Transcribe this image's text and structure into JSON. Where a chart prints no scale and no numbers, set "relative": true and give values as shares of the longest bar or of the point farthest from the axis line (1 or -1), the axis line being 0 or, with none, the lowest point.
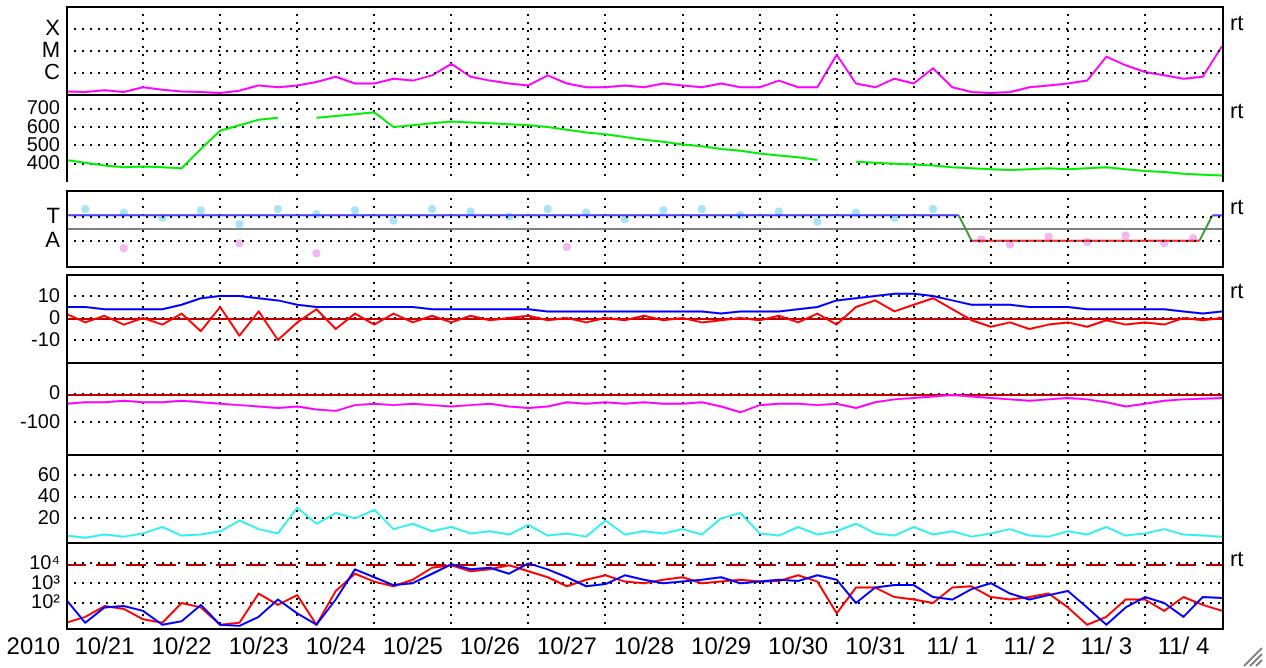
{
  "chart_data": [
    {
      "type": "line",
      "relative": true,
      "grid": true,
      "tick_labels": "y",
      "annotations": [
        "rt",
        "C",
        "M",
        "X"
      ],
      "xlim": [
        "2010-10-21T00:00",
        "2010-11-05T00:00"
      ],
      "xticks": [
        {
          "value": "2010-10-22T00:00",
          "label": null
        },
        {
          "value": "2010-10-23T00:00",
          "label": null
        },
        {
          "value": "2010-10-24T00:00",
          "label": null
        },
        {
          "value": "2010-10-25T00:00",
          "label": null
        },
        {
          "value": "2010-10-26T00:00",
          "label": null
        },
        {
          "value": "2010-10-27T00:00",
          "label": null
        },
        {
          "value": "2010-10-28T00:00",
          "label": null
        },
        {
          "value": "2010-10-29T00:00",
          "label": null
        },
        {
          "value": "2010-10-30T00:00",
          "label": null
        },
        {
          "value": "2010-10-31T00:00",
          "label": null
        },
        {
          "value": "2010-11-01T00:00",
          "label": null
        },
        {
          "value": "2010-11-02T00:00",
          "label": null
        },
        {
          "value": "2010-11-03T00:00",
          "label": null
        },
        {
          "value": "2010-11-04T00:00",
          "label": null
        }
      ],
      "x": [
        "2010-10-21T00:00",
        "2010-10-21T06:00",
        "2010-10-21T12:00",
        "2010-10-21T18:00",
        "2010-10-22T00:00",
        "2010-10-22T06:00",
        "2010-10-22T12:00",
        "2010-10-22T18:00",
        "2010-10-23T00:00",
        "2010-10-23T06:00",
        "2010-10-23T12:00",
        "2010-10-23T18:00",
        "2010-10-24T00:00",
        "2010-10-24T06:00",
        "2010-10-24T12:00",
        "2010-10-24T18:00",
        "2010-10-25T00:00",
        "2010-10-25T06:00",
        "2010-10-25T12:00",
        "2010-10-25T18:00",
        "2010-10-26T00:00",
        "2010-10-26T06:00",
        "2010-10-26T12:00",
        "2010-10-26T18:00",
        "2010-10-27T00:00",
        "2010-10-27T06:00",
        "2010-10-27T12:00",
        "2010-10-27T18:00",
        "2010-10-28T00:00",
        "2010-10-28T06:00",
        "2010-10-28T12:00",
        "2010-10-28T18:00",
        "2010-10-29T00:00",
        "2010-10-29T06:00",
        "2010-10-29T12:00",
        "2010-10-29T18:00",
        "2010-10-30T00:00",
        "2010-10-30T06:00",
        "2010-10-30T12:00",
        "2010-10-30T18:00",
        "2010-10-31T00:00",
        "2010-10-31T06:00",
        "2010-10-31T12:00",
        "2010-10-31T18:00",
        "2010-11-01T00:00",
        "2010-11-01T06:00",
        "2010-11-01T12:00",
        "2010-11-01T18:00",
        "2010-11-02T00:00",
        "2010-11-02T06:00",
        "2010-11-02T12:00",
        "2010-11-02T18:00",
        "2010-11-03T00:00",
        "2010-11-03T06:00",
        "2010-11-03T12:00",
        "2010-11-03T18:00",
        "2010-11-04T00:00",
        "2010-11-04T06:00",
        "2010-11-04T12:00",
        "2010-11-04T18:00",
        "2010-11-05T00:00"
      ],
      "series": [
        {
          "color": "#ff00ff",
          "values": [
            0.05,
            0.04,
            0.08,
            0.04,
            0.14,
            0.09,
            0.05,
            0.04,
            0.02,
            0.07,
            0.18,
            0.14,
            0.18,
            0.25,
            0.36,
            0.22,
            0.22,
            0.32,
            0.28,
            0.39,
            0.63,
            0.36,
            0.28,
            0.22,
            0.18,
            0.39,
            0.22,
            0.14,
            0.14,
            0.18,
            0.14,
            0.22,
            0.18,
            0.14,
            0.22,
            0.14,
            0.14,
            0.28,
            0.14,
            0.14,
            0.82,
            0.22,
            0.14,
            0.32,
            0.22,
            0.54,
            0.14,
            0.04,
            0.02,
            0.04,
            0.14,
            0.18,
            0.22,
            0.28,
            0.78,
            0.6,
            0.46,
            0.39,
            0.32,
            0.36,
            1
          ]
        }
      ]
    },
    {
      "type": "line",
      "grid": true,
      "tick_labels": "y",
      "annotations": [
        "rt"
      ],
      "xlim": [
        "2010-10-21T00:00",
        "2010-11-05T00:00"
      ],
      "xticks": [
        {
          "value": "2010-10-22T00:00",
          "label": null
        },
        {
          "value": "2010-10-23T00:00",
          "label": null
        },
        {
          "value": "2010-10-24T00:00",
          "label": null
        },
        {
          "value": "2010-10-25T00:00",
          "label": null
        },
        {
          "value": "2010-10-26T00:00",
          "label": null
        },
        {
          "value": "2010-10-27T00:00",
          "label": null
        },
        {
          "value": "2010-10-28T00:00",
          "label": null
        },
        {
          "value": "2010-10-29T00:00",
          "label": null
        },
        {
          "value": "2010-10-30T00:00",
          "label": null
        },
        {
          "value": "2010-10-31T00:00",
          "label": null
        },
        {
          "value": "2010-11-01T00:00",
          "label": null
        },
        {
          "value": "2010-11-02T00:00",
          "label": null
        },
        {
          "value": "2010-11-03T00:00",
          "label": null
        },
        {
          "value": "2010-11-04T00:00",
          "label": null
        }
      ],
      "ylim": [
        300,
        780
      ],
      "yticks": [
        400,
        500,
        600,
        700
      ],
      "x": [
        "2010-10-21T00:00",
        "2010-10-21T06:00",
        "2010-10-21T12:00",
        "2010-10-21T18:00",
        "2010-10-22T00:00",
        "2010-10-22T06:00",
        "2010-10-22T12:00",
        "2010-10-22T18:00",
        "2010-10-23T00:00",
        "2010-10-23T06:00",
        "2010-10-23T12:00",
        "2010-10-23T18:00",
        "2010-10-24T00:00",
        "2010-10-24T06:00",
        "2010-10-24T12:00",
        "2010-10-24T18:00",
        "2010-10-25T00:00",
        "2010-10-25T06:00",
        "2010-10-25T12:00",
        "2010-10-25T18:00",
        "2010-10-26T00:00",
        "2010-10-26T06:00",
        "2010-10-26T12:00",
        "2010-10-26T18:00",
        "2010-10-27T00:00",
        "2010-10-27T06:00",
        "2010-10-27T12:00",
        "2010-10-27T18:00",
        "2010-10-28T00:00",
        "2010-10-28T06:00",
        "2010-10-28T12:00",
        "2010-10-28T18:00",
        "2010-10-29T00:00",
        "2010-10-29T06:00",
        "2010-10-29T12:00",
        "2010-10-29T18:00",
        "2010-10-30T00:00",
        "2010-10-30T06:00",
        "2010-10-30T12:00",
        "2010-10-30T18:00",
        "2010-10-31T00:00",
        "2010-10-31T06:00",
        "2010-10-31T12:00",
        "2010-10-31T18:00",
        "2010-11-01T00:00",
        "2010-11-01T06:00",
        "2010-11-01T12:00",
        "2010-11-01T18:00",
        "2010-11-02T00:00",
        "2010-11-02T06:00",
        "2010-11-02T12:00",
        "2010-11-02T18:00",
        "2010-11-03T00:00",
        "2010-11-03T06:00",
        "2010-11-03T12:00",
        "2010-11-03T18:00",
        "2010-11-04T00:00",
        "2010-11-04T06:00",
        "2010-11-04T12:00",
        "2010-11-04T18:00",
        "2010-11-05T00:00"
      ],
      "series": [
        {
          "color": "#00ee00",
          "values": [
            420,
            405,
            390,
            380,
            385,
            380,
            375,
            480,
            580,
            610,
            640,
            650,
            null,
            650,
            660,
            670,
            680,
            600,
            610,
            620,
            630,
            625,
            620,
            615,
            610,
            600,
            585,
            570,
            560,
            545,
            530,
            520,
            505,
            495,
            480,
            470,
            455,
            445,
            435,
            420,
            null,
            410,
            405,
            400,
            395,
            390,
            380,
            375,
            370,
            365,
            370,
            375,
            370,
            375,
            380,
            370,
            360,
            355,
            345,
            340,
            335
          ]
        }
      ]
    },
    {
      "type": "line",
      "relative": true,
      "grid": true,
      "tick_labels": "y",
      "annotations": [
        "rt",
        "A",
        "T"
      ],
      "xlim": [
        "2010-10-21T00:00",
        "2010-11-05T00:00"
      ],
      "xticks": [
        {
          "value": "2010-10-22T00:00",
          "label": null
        },
        {
          "value": "2010-10-23T00:00",
          "label": null
        },
        {
          "value": "2010-10-24T00:00",
          "label": null
        },
        {
          "value": "2010-10-25T00:00",
          "label": null
        },
        {
          "value": "2010-10-26T00:00",
          "label": null
        },
        {
          "value": "2010-10-27T00:00",
          "label": null
        },
        {
          "value": "2010-10-28T00:00",
          "label": null
        },
        {
          "value": "2010-10-29T00:00",
          "label": null
        },
        {
          "value": "2010-10-30T00:00",
          "label": null
        },
        {
          "value": "2010-10-31T00:00",
          "label": null
        },
        {
          "value": "2010-11-01T00:00",
          "label": null
        },
        {
          "value": "2010-11-02T00:00",
          "label": null
        },
        {
          "value": "2010-11-03T00:00",
          "label": null
        },
        {
          "value": "2010-11-04T00:00",
          "label": null
        }
      ],
      "ref_lines": [
        {
          "axis": "y",
          "value": 0,
          "color": "#808080"
        }
      ],
      "series": [
        {
          "color": "#4040ff",
          "x": [
            "2010-10-21T00:00",
            "2010-11-01T14:00"
          ],
          "values": [
            0.5,
            0.5
          ]
        },
        {
          "color": "#339933",
          "x": [
            "2010-11-01T14:00",
            "2010-11-01T18:00"
          ],
          "values": [
            0.5,
            -0.5
          ]
        },
        {
          "color": "#ff2020",
          "x": [
            "2010-11-01T18:00",
            "2010-11-04T17:00"
          ],
          "values": [
            -0.5,
            -0.5
          ]
        },
        {
          "color": "#339933",
          "x": [
            "2010-11-04T17:00",
            "2010-11-04T21:00"
          ],
          "values": [
            -0.5,
            0.5
          ]
        },
        {
          "color": "#4040ff",
          "x": [
            "2010-11-04T21:00",
            "2010-11-05T00:00"
          ],
          "values": [
            0.5,
            0.5
          ]
        },
        {
          "type": "scatter",
          "color": "#a8e4f8",
          "x": [
            "2010-10-21T06:00",
            "2010-10-21T18:00",
            "2010-10-22T06:00",
            "2010-10-22T18:00",
            "2010-10-23T06:00",
            "2010-10-23T18:00",
            "2010-10-24T06:00",
            "2010-10-24T18:00",
            "2010-10-25T06:00",
            "2010-10-25T18:00",
            "2010-10-26T06:00",
            "2010-10-26T18:00",
            "2010-10-27T06:00",
            "2010-10-27T18:00",
            "2010-10-28T06:00",
            "2010-10-28T18:00",
            "2010-10-29T06:00",
            "2010-10-29T18:00",
            "2010-10-30T06:00",
            "2010-10-30T18:00",
            "2010-10-31T06:00",
            "2010-10-31T18:00",
            "2010-11-01T06:00"
          ],
          "values": [
            0.75,
            0.6,
            0.4,
            0.7,
            0.15,
            0.75,
            0.55,
            0.7,
            0.3,
            0.75,
            0.65,
            0.45,
            0.75,
            0.6,
            0.35,
            0.7,
            0.75,
            0.5,
            0.65,
            0.25,
            0.6,
            0.4,
            0.75
          ]
        },
        {
          "type": "scatter",
          "color": "#f4b8f0",
          "x": [
            "2010-10-21T18:00",
            "2010-10-23T06:00",
            "2010-10-24T06:00",
            "2010-10-27T12:00",
            "2010-11-01T21:00",
            "2010-11-02T06:00",
            "2010-11-02T18:00",
            "2010-11-03T06:00",
            "2010-11-03T18:00",
            "2010-11-04T06:00",
            "2010-11-04T15:00"
          ],
          "values": [
            -0.8,
            -0.6,
            -1,
            -0.75,
            -0.45,
            -0.65,
            -0.35,
            -0.55,
            -0.3,
            -0.6,
            -0.4
          ]
        }
      ]
    },
    {
      "type": "line",
      "grid": true,
      "tick_labels": "y",
      "annotations": [
        "rt"
      ],
      "xlim": [
        "2010-10-21T00:00",
        "2010-11-05T00:00"
      ],
      "xticks": [
        {
          "value": "2010-10-22T00:00",
          "label": null
        },
        {
          "value": "2010-10-23T00:00",
          "label": null
        },
        {
          "value": "2010-10-24T00:00",
          "label": null
        },
        {
          "value": "2010-10-25T00:00",
          "label": null
        },
        {
          "value": "2010-10-26T00:00",
          "label": null
        },
        {
          "value": "2010-10-27T00:00",
          "label": null
        },
        {
          "value": "2010-10-28T00:00",
          "label": null
        },
        {
          "value": "2010-10-29T00:00",
          "label": null
        },
        {
          "value": "2010-10-30T00:00",
          "label": null
        },
        {
          "value": "2010-10-31T00:00",
          "label": null
        },
        {
          "value": "2010-11-01T00:00",
          "label": null
        },
        {
          "value": "2010-11-02T00:00",
          "label": null
        },
        {
          "value": "2010-11-03T00:00",
          "label": null
        },
        {
          "value": "2010-11-04T00:00",
          "label": null
        }
      ],
      "ylim": [
        -20,
        20
      ],
      "yticks": [
        -10,
        0,
        10
      ],
      "ref_lines": [
        {
          "axis": "y",
          "value": 0,
          "color": "#c00000"
        }
      ],
      "x": [
        "2010-10-21T00:00",
        "2010-10-21T06:00",
        "2010-10-21T12:00",
        "2010-10-21T18:00",
        "2010-10-22T00:00",
        "2010-10-22T06:00",
        "2010-10-22T12:00",
        "2010-10-22T18:00",
        "2010-10-23T00:00",
        "2010-10-23T06:00",
        "2010-10-23T12:00",
        "2010-10-23T18:00",
        "2010-10-24T00:00",
        "2010-10-24T06:00",
        "2010-10-24T12:00",
        "2010-10-24T18:00",
        "2010-10-25T00:00",
        "2010-10-25T06:00",
        "2010-10-25T12:00",
        "2010-10-25T18:00",
        "2010-10-26T00:00",
        "2010-10-26T06:00",
        "2010-10-26T12:00",
        "2010-10-26T18:00",
        "2010-10-27T00:00",
        "2010-10-27T06:00",
        "2010-10-27T12:00",
        "2010-10-27T18:00",
        "2010-10-28T00:00",
        "2010-10-28T06:00",
        "2010-10-28T12:00",
        "2010-10-28T18:00",
        "2010-10-29T00:00",
        "2010-10-29T06:00",
        "2010-10-29T12:00",
        "2010-10-29T18:00",
        "2010-10-30T00:00",
        "2010-10-30T06:00",
        "2010-10-30T12:00",
        "2010-10-30T18:00",
        "2010-10-31T00:00",
        "2010-10-31T06:00",
        "2010-10-31T12:00",
        "2010-10-31T18:00",
        "2010-11-01T00:00",
        "2010-11-01T06:00",
        "2010-11-01T12:00",
        "2010-11-01T18:00",
        "2010-11-02T00:00",
        "2010-11-02T06:00",
        "2010-11-02T12:00",
        "2010-11-02T18:00",
        "2010-11-03T00:00",
        "2010-11-03T06:00",
        "2010-11-03T12:00",
        "2010-11-03T18:00",
        "2010-11-04T00:00",
        "2010-11-04T06:00",
        "2010-11-04T12:00",
        "2010-11-04T18:00",
        "2010-11-05T00:00"
      ],
      "series": [
        {
          "color": "#ff0000",
          "values": [
            2,
            -2,
            1,
            -3,
            0,
            -3,
            2,
            -6,
            5,
            -8,
            3,
            -10,
            -2,
            4,
            -5,
            2,
            -3,
            2,
            -2,
            1,
            -2,
            1,
            -1,
            0,
            1,
            -1,
            0,
            -2,
            0,
            -1,
            1,
            -1,
            0,
            -2,
            -1,
            0,
            -1,
            1,
            -2,
            2,
            -3,
            5,
            8,
            3,
            6,
            9,
            4,
            -1,
            -4,
            -2,
            -5,
            -3,
            -2,
            -4,
            -1,
            -3,
            -2,
            -3,
            0,
            -1,
            0
          ]
        },
        {
          "color": "#0000ff",
          "values": [
            5,
            5,
            4,
            4,
            4,
            4,
            6,
            9,
            10,
            10,
            9,
            8,
            6,
            5,
            5,
            5,
            5,
            5,
            5,
            4,
            4,
            4,
            4,
            4,
            4,
            3,
            3,
            3,
            3,
            3,
            3,
            3,
            3,
            3,
            2,
            3,
            3,
            3,
            4,
            5,
            8,
            9,
            10,
            11,
            11,
            10,
            8,
            6,
            6,
            6,
            5,
            5,
            5,
            4,
            4,
            4,
            4,
            4,
            3,
            2,
            3
          ]
        }
      ]
    },
    {
      "type": "line",
      "grid": true,
      "tick_labels": "y",
      "xlim": [
        "2010-10-21T00:00",
        "2010-11-05T00:00"
      ],
      "xticks": [
        {
          "value": "2010-10-22T00:00",
          "label": null
        },
        {
          "value": "2010-10-23T00:00",
          "label": null
        },
        {
          "value": "2010-10-24T00:00",
          "label": null
        },
        {
          "value": "2010-10-25T00:00",
          "label": null
        },
        {
          "value": "2010-10-26T00:00",
          "label": null
        },
        {
          "value": "2010-10-27T00:00",
          "label": null
        },
        {
          "value": "2010-10-28T00:00",
          "label": null
        },
        {
          "value": "2010-10-29T00:00",
          "label": null
        },
        {
          "value": "2010-10-30T00:00",
          "label": null
        },
        {
          "value": "2010-10-31T00:00",
          "label": null
        },
        {
          "value": "2010-11-01T00:00",
          "label": null
        },
        {
          "value": "2010-11-02T00:00",
          "label": null
        },
        {
          "value": "2010-11-03T00:00",
          "label": null
        },
        {
          "value": "2010-11-04T00:00",
          "label": null
        }
      ],
      "ylim": [
        -210,
        110
      ],
      "yticks": [
        -100,
        0
      ],
      "ref_lines": [
        {
          "axis": "y",
          "value": 0,
          "color": "#c00000"
        }
      ],
      "x": [
        "2010-10-21T00:00",
        "2010-10-21T06:00",
        "2010-10-21T12:00",
        "2010-10-21T18:00",
        "2010-10-22T00:00",
        "2010-10-22T06:00",
        "2010-10-22T12:00",
        "2010-10-22T18:00",
        "2010-10-23T00:00",
        "2010-10-23T06:00",
        "2010-10-23T12:00",
        "2010-10-23T18:00",
        "2010-10-24T00:00",
        "2010-10-24T06:00",
        "2010-10-24T12:00",
        "2010-10-24T18:00",
        "2010-10-25T00:00",
        "2010-10-25T06:00",
        "2010-10-25T12:00",
        "2010-10-25T18:00",
        "2010-10-26T00:00",
        "2010-10-26T06:00",
        "2010-10-26T12:00",
        "2010-10-26T18:00",
        "2010-10-27T00:00",
        "2010-10-27T06:00",
        "2010-10-27T12:00",
        "2010-10-27T18:00",
        "2010-10-28T00:00",
        "2010-10-28T06:00",
        "2010-10-28T12:00",
        "2010-10-28T18:00",
        "2010-10-29T00:00",
        "2010-10-29T06:00",
        "2010-10-29T12:00",
        "2010-10-29T18:00",
        "2010-10-30T00:00",
        "2010-10-30T06:00",
        "2010-10-30T12:00",
        "2010-10-30T18:00",
        "2010-10-31T00:00",
        "2010-10-31T06:00",
        "2010-10-31T12:00",
        "2010-10-31T18:00",
        "2010-11-01T00:00",
        "2010-11-01T06:00",
        "2010-11-01T12:00",
        "2010-11-01T18:00",
        "2010-11-02T00:00",
        "2010-11-02T06:00",
        "2010-11-02T12:00",
        "2010-11-02T18:00",
        "2010-11-03T00:00",
        "2010-11-03T06:00",
        "2010-11-03T12:00",
        "2010-11-03T18:00",
        "2010-11-04T00:00",
        "2010-11-04T06:00",
        "2010-11-04T12:00",
        "2010-11-04T18:00",
        "2010-11-05T00:00"
      ],
      "series": [
        {
          "color": "#ff00ff",
          "values": [
            -35,
            -30,
            -30,
            -25,
            -30,
            -30,
            -25,
            -30,
            -35,
            -40,
            -45,
            -50,
            -45,
            -55,
            -60,
            -40,
            -35,
            -40,
            -35,
            -40,
            -45,
            -40,
            -35,
            -45,
            -50,
            -45,
            -30,
            -35,
            -30,
            -35,
            -30,
            -35,
            -35,
            -30,
            -45,
            -65,
            -40,
            -35,
            -35,
            -40,
            -35,
            -50,
            -30,
            -20,
            -15,
            -10,
            -5,
            -10,
            -15,
            -20,
            -25,
            -20,
            -15,
            -20,
            -30,
            -45,
            -35,
            -25,
            -20,
            -18,
            -15
          ]
        }
      ]
    },
    {
      "type": "line",
      "grid": true,
      "tick_labels": "y",
      "xlim": [
        "2010-10-21T00:00",
        "2010-11-05T00:00"
      ],
      "xticks": [
        {
          "value": "2010-10-22T00:00",
          "label": null
        },
        {
          "value": "2010-10-23T00:00",
          "label": null
        },
        {
          "value": "2010-10-24T00:00",
          "label": null
        },
        {
          "value": "2010-10-25T00:00",
          "label": null
        },
        {
          "value": "2010-10-26T00:00",
          "label": null
        },
        {
          "value": "2010-10-27T00:00",
          "label": null
        },
        {
          "value": "2010-10-28T00:00",
          "label": null
        },
        {
          "value": "2010-10-29T00:00",
          "label": null
        },
        {
          "value": "2010-10-30T00:00",
          "label": null
        },
        {
          "value": "2010-10-31T00:00",
          "label": null
        },
        {
          "value": "2010-11-01T00:00",
          "label": null
        },
        {
          "value": "2010-11-02T00:00",
          "label": null
        },
        {
          "value": "2010-11-03T00:00",
          "label": null
        },
        {
          "value": "2010-11-04T00:00",
          "label": null
        }
      ],
      "ylim": [
        -2,
        80
      ],
      "yticks": [
        20,
        40,
        60
      ],
      "x": [
        "2010-10-21T00:00",
        "2010-10-21T06:00",
        "2010-10-21T12:00",
        "2010-10-21T18:00",
        "2010-10-22T00:00",
        "2010-10-22T06:00",
        "2010-10-22T12:00",
        "2010-10-22T18:00",
        "2010-10-23T00:00",
        "2010-10-23T06:00",
        "2010-10-23T12:00",
        "2010-10-23T18:00",
        "2010-10-24T00:00",
        "2010-10-24T06:00",
        "2010-10-24T12:00",
        "2010-10-24T18:00",
        "2010-10-25T00:00",
        "2010-10-25T06:00",
        "2010-10-25T12:00",
        "2010-10-25T18:00",
        "2010-10-26T00:00",
        "2010-10-26T06:00",
        "2010-10-26T12:00",
        "2010-10-26T18:00",
        "2010-10-27T00:00",
        "2010-10-27T06:00",
        "2010-10-27T12:00",
        "2010-10-27T18:00",
        "2010-10-28T00:00",
        "2010-10-28T06:00",
        "2010-10-28T12:00",
        "2010-10-28T18:00",
        "2010-10-29T00:00",
        "2010-10-29T06:00",
        "2010-10-29T12:00",
        "2010-10-29T18:00",
        "2010-10-30T00:00",
        "2010-10-30T06:00",
        "2010-10-30T12:00",
        "2010-10-30T18:00",
        "2010-10-31T00:00",
        "2010-10-31T06:00",
        "2010-10-31T12:00",
        "2010-10-31T18:00",
        "2010-11-01T00:00",
        "2010-11-01T06:00",
        "2010-11-01T12:00",
        "2010-11-01T18:00",
        "2010-11-02T00:00",
        "2010-11-02T06:00",
        "2010-11-02T12:00",
        "2010-11-02T18:00",
        "2010-11-03T00:00",
        "2010-11-03T06:00",
        "2010-11-03T12:00",
        "2010-11-03T18:00",
        "2010-11-04T00:00",
        "2010-11-04T06:00",
        "2010-11-04T12:00",
        "2010-11-04T18:00",
        "2010-11-05T00:00"
      ],
      "series": [
        {
          "color": "#33f0f0",
          "values": [
            4,
            2,
            5,
            3,
            6,
            12,
            4,
            5,
            8,
            18,
            10,
            6,
            30,
            15,
            25,
            20,
            28,
            10,
            15,
            8,
            12,
            6,
            8,
            5,
            14,
            4,
            6,
            3,
            18,
            5,
            8,
            6,
            10,
            5,
            20,
            25,
            6,
            4,
            12,
            5,
            8,
            15,
            6,
            4,
            12,
            5,
            8,
            3,
            6,
            10,
            4,
            3,
            8,
            5,
            12,
            4,
            6,
            10,
            5,
            4,
            3
          ]
        }
      ]
    },
    {
      "type": "line",
      "log": true,
      "grid": true,
      "xlabel": "2010",
      "annotations": [
        "rt"
      ],
      "xlim": [
        "2010-10-21T00:00",
        "2010-11-05T00:00"
      ],
      "xticks": [
        {
          "value": "2010-10-21T12:00",
          "label": "10/21"
        },
        {
          "value": "2010-10-22T00:00",
          "label": null
        },
        {
          "value": "2010-10-22T12:00",
          "label": "10/22"
        },
        {
          "value": "2010-10-23T00:00",
          "label": null
        },
        {
          "value": "2010-10-23T12:00",
          "label": "10/23"
        },
        {
          "value": "2010-10-24T00:00",
          "label": null
        },
        {
          "value": "2010-10-24T12:00",
          "label": "10/24"
        },
        {
          "value": "2010-10-25T00:00",
          "label": null
        },
        {
          "value": "2010-10-25T12:00",
          "label": "10/25"
        },
        {
          "value": "2010-10-26T00:00",
          "label": null
        },
        {
          "value": "2010-10-26T12:00",
          "label": "10/26"
        },
        {
          "value": "2010-10-27T00:00",
          "label": null
        },
        {
          "value": "2010-10-27T12:00",
          "label": "10/27"
        },
        {
          "value": "2010-10-28T00:00",
          "label": null
        },
        {
          "value": "2010-10-28T12:00",
          "label": "10/28"
        },
        {
          "value": "2010-10-29T00:00",
          "label": null
        },
        {
          "value": "2010-10-29T12:00",
          "label": "10/29"
        },
        {
          "value": "2010-10-30T00:00",
          "label": null
        },
        {
          "value": "2010-10-30T12:00",
          "label": "10/30"
        },
        {
          "value": "2010-10-31T00:00",
          "label": null
        },
        {
          "value": "2010-10-31T12:00",
          "label": "10/31"
        },
        {
          "value": "2010-11-01T00:00",
          "label": null
        },
        {
          "value": "2010-11-01T12:00",
          "label": "11/ 1"
        },
        {
          "value": "2010-11-02T00:00",
          "label": null
        },
        {
          "value": "2010-11-02T12:00",
          "label": "11/ 2"
        },
        {
          "value": "2010-11-03T00:00",
          "label": null
        },
        {
          "value": "2010-11-03T12:00",
          "label": "11/ 3"
        },
        {
          "value": "2010-11-04T00:00",
          "label": null
        },
        {
          "value": "2010-11-04T12:00",
          "label": "11/ 4"
        }
      ],
      "ylim": [
        6,
        120000
      ],
      "yticks": [
        {
          "value": 100,
          "label": "10²"
        },
        {
          "value": 1000,
          "label": "10³"
        },
        {
          "value": 10000,
          "label": "10⁴"
        }
      ],
      "ref_lines": [
        {
          "axis": "y",
          "value": 10000,
          "color": "#c00000",
          "line_style": "dashed"
        }
      ],
      "x": [
        "2010-10-21T00:00",
        "2010-10-21T06:00",
        "2010-10-21T12:00",
        "2010-10-21T18:00",
        "2010-10-22T00:00",
        "2010-10-22T06:00",
        "2010-10-22T12:00",
        "2010-10-22T18:00",
        "2010-10-23T00:00",
        "2010-10-23T06:00",
        "2010-10-23T12:00",
        "2010-10-23T18:00",
        "2010-10-24T00:00",
        "2010-10-24T06:00",
        "2010-10-24T12:00",
        "2010-10-24T18:00",
        "2010-10-25T00:00",
        "2010-10-25T06:00",
        "2010-10-25T12:00",
        "2010-10-25T18:00",
        "2010-10-26T00:00",
        "2010-10-26T06:00",
        "2010-10-26T12:00",
        "2010-10-26T18:00",
        "2010-10-27T00:00",
        "2010-10-27T06:00",
        "2010-10-27T12:00",
        "2010-10-27T18:00",
        "2010-10-28T00:00",
        "2010-10-28T06:00",
        "2010-10-28T12:00",
        "2010-10-28T18:00",
        "2010-10-29T00:00",
        "2010-10-29T06:00",
        "2010-10-29T12:00",
        "2010-10-29T18:00",
        "2010-10-30T00:00",
        "2010-10-30T06:00",
        "2010-10-30T12:00",
        "2010-10-30T18:00",
        "2010-10-31T00:00",
        "2010-10-31T06:00",
        "2010-10-31T12:00",
        "2010-10-31T18:00",
        "2010-11-01T00:00",
        "2010-11-01T06:00",
        "2010-11-01T12:00",
        "2010-11-01T18:00",
        "2010-11-02T00:00",
        "2010-11-02T06:00",
        "2010-11-02T12:00",
        "2010-11-02T18:00",
        "2010-11-03T00:00",
        "2010-11-03T06:00",
        "2010-11-03T12:00",
        "2010-11-03T18:00",
        "2010-11-04T00:00",
        "2010-11-04T06:00",
        "2010-11-04T12:00",
        "2010-11-04T18:00",
        "2010-11-05T00:00"
      ],
      "series": [
        {
          "color": "#0000ff",
          "values": [
            150,
            10,
            60,
            70,
            40,
            8,
            12,
            80,
            8,
            7,
            20,
            150,
            30,
            8,
            150,
            5000,
            2000,
            800,
            1000,
            3000,
            9000,
            5000,
            6000,
            3000,
            10000,
            5000,
            2000,
            700,
            900,
            2500,
            1500,
            1000,
            1200,
            1500,
            2000,
            1000,
            1200,
            1500,
            1300,
            2500,
            1500,
            100,
            600,
            800,
            800,
            200,
            150,
            500,
            1000,
            300,
            150,
            250,
            400,
            60,
            8,
            60,
            200,
            100,
            20,
            200,
            180
          ]
        },
        {
          "color": "#ff0000",
          "values": [
            10,
            20,
            70,
            50,
            15,
            10,
            100,
            60,
            8,
            10,
            300,
            80,
            250,
            8,
            400,
            3000,
            1200,
            700,
            1500,
            6000,
            8000,
            4000,
            5000,
            8000,
            4000,
            2000,
            700,
            1500,
            2500,
            1200,
            1000,
            1500,
            2000,
            1000,
            1200,
            1500,
            1200,
            1300,
            2500,
            1200,
            30,
            600,
            600,
            200,
            150,
            100,
            600,
            700,
            200,
            150,
            200,
            300,
            60,
            8,
            20,
            150,
            150,
            40,
            200,
            80,
            40
          ]
        }
      ]
    }
  ]
}
